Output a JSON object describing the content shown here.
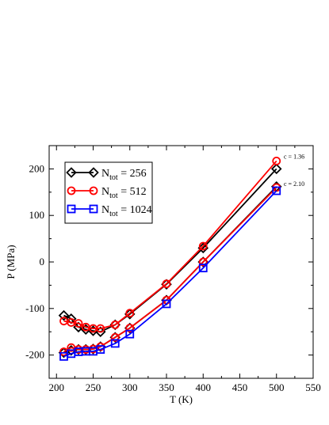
{
  "chart_data": {
    "type": "line",
    "xlabel": "T (K)",
    "ylabel": "P (MPa)",
    "xlim": [
      190,
      550
    ],
    "ylim": [
      -250,
      250
    ],
    "xticks": [
      200,
      250,
      300,
      350,
      400,
      450,
      500,
      550
    ],
    "yticks": [
      -200,
      -100,
      0,
      100,
      200
    ],
    "grid": false,
    "legend": "top-left",
    "series": [
      {
        "name": "N_tot = 256",
        "legend_main": "N",
        "legend_sub": "tot",
        "legend_rest": " = 256",
        "color": "#000000",
        "marker": "diamond",
        "branches": [
          {
            "x": [
              210,
              220,
              230,
              240,
              250,
              260,
              280,
              300,
              350,
              400,
              500
            ],
            "y": [
              -115,
              -122,
              -140,
              -145,
              -148,
              -150,
              -135,
              -112,
              -48,
              30,
              200
            ]
          },
          {
            "x": [
              210,
              220,
              230,
              240,
              250,
              260,
              280,
              300,
              350,
              400,
              500
            ],
            "y": [
              -195,
              -190,
              -188,
              -188,
              -187,
              -182,
              -162,
              -142,
              -82,
              0,
              162
            ]
          }
        ]
      },
      {
        "name": "N_tot = 512",
        "legend_main": "N",
        "legend_sub": "tot",
        "legend_rest": " = 512",
        "color": "#ff0000",
        "marker": "circle",
        "branches": [
          {
            "x": [
              210,
              220,
              230,
              240,
              250,
              260,
              280,
              300,
              350,
              400,
              500
            ],
            "y": [
              -127,
              -130,
              -132,
              -140,
              -143,
              -143,
              -135,
              -110,
              -47,
              34,
              217
            ]
          },
          {
            "x": [
              210,
              220,
              230,
              240,
              250,
              260,
              280,
              300,
              350,
              400,
              500
            ],
            "y": [
              -193,
              -184,
              -188,
              -188,
              -187,
              -182,
              -162,
              -142,
              -82,
              0,
              160
            ]
          }
        ]
      },
      {
        "name": "N_tot = 1024",
        "legend_main": "N",
        "legend_sub": "tot",
        "legend_rest": " = 1024",
        "color": "#0000ff",
        "marker": "square",
        "branches": [
          {
            "x": [
              210,
              220,
              230,
              240,
              250,
              260,
              280,
              300,
              350,
              400,
              500
            ],
            "y": [
              -203,
              -197,
              -193,
              -192,
              -192,
              -188,
              -175,
              -155,
              -90,
              -13,
              153
            ]
          }
        ]
      }
    ],
    "annotations": [
      {
        "text": "c = 1.36",
        "x": 510,
        "y": 222
      },
      {
        "text": "c = 2.10",
        "x": 510,
        "y": 163
      }
    ]
  }
}
